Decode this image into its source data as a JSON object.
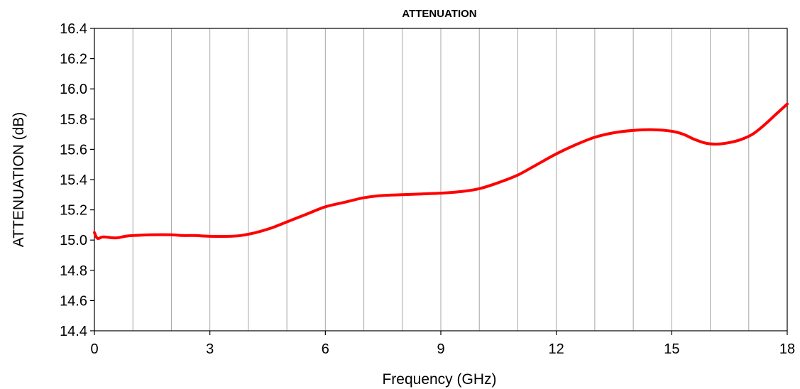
{
  "chart_data": {
    "type": "line",
    "title": "ATTENUATION",
    "xlabel": "Frequency (GHz)",
    "ylabel": "ATTENUATION (dB)",
    "xlim": [
      0,
      18
    ],
    "ylim": [
      14.4,
      16.4
    ],
    "x_ticks": [
      0,
      3,
      6,
      9,
      12,
      15,
      18
    ],
    "x_tick_labels": [
      "0",
      "3",
      "6",
      "9",
      "12",
      "15",
      "18"
    ],
    "y_ticks": [
      14.4,
      14.6,
      14.8,
      15.0,
      15.2,
      15.4,
      15.6,
      15.8,
      16.0,
      16.2,
      16.4
    ],
    "y_tick_labels": [
      "14.4",
      "14.6",
      "14.8",
      "15.0",
      "15.2",
      "15.4",
      "15.6",
      "15.8",
      "16.0",
      "16.2",
      "16.4"
    ],
    "grid": "vertical every 1 GHz",
    "legend": "none",
    "series": [
      {
        "color": "#ff0000",
        "x": [
          0,
          0.05,
          0.1,
          0.2,
          0.3,
          0.45,
          0.6,
          0.8,
          1.0,
          1.5,
          2.0,
          2.3,
          2.6,
          3.0,
          3.5,
          3.8,
          4.2,
          4.6,
          5.0,
          5.5,
          6.0,
          6.5,
          7.0,
          7.5,
          8.0,
          8.5,
          9.0,
          9.5,
          10.0,
          10.5,
          11.0,
          11.5,
          12.0,
          12.5,
          13.0,
          13.5,
          14.0,
          14.5,
          15.0,
          15.3,
          15.6,
          15.9,
          16.2,
          16.5,
          16.8,
          17.1,
          17.4,
          17.7,
          18.0
        ],
        "y": [
          15.05,
          15.02,
          15.01,
          15.02,
          15.02,
          15.015,
          15.015,
          15.025,
          15.03,
          15.035,
          15.035,
          15.03,
          15.03,
          15.025,
          15.025,
          15.03,
          15.05,
          15.08,
          15.12,
          15.17,
          15.22,
          15.25,
          15.28,
          15.295,
          15.3,
          15.305,
          15.31,
          15.32,
          15.34,
          15.38,
          15.43,
          15.5,
          15.57,
          15.63,
          15.68,
          15.71,
          15.725,
          15.73,
          15.72,
          15.7,
          15.665,
          15.64,
          15.635,
          15.645,
          15.665,
          15.7,
          15.76,
          15.83,
          15.9
        ]
      }
    ]
  }
}
